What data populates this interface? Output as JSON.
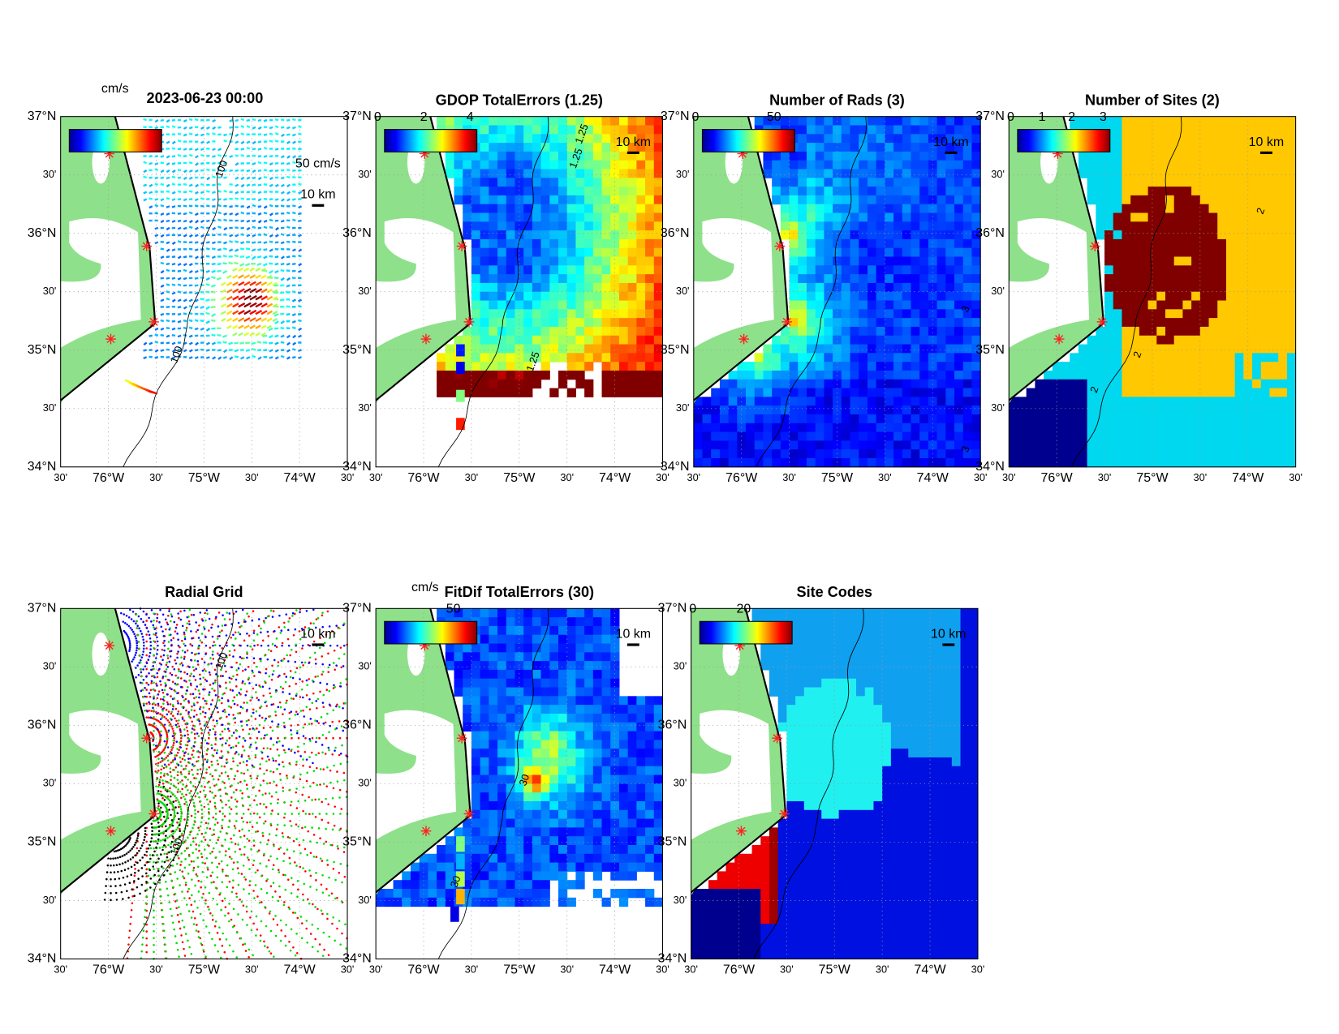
{
  "lat_labels": [
    "37°N",
    "30'",
    "36°N",
    "30'",
    "35°N",
    "30'",
    "34°N"
  ],
  "lon_labels": [
    "30'",
    "76°W",
    "30'",
    "75°W",
    "30'",
    "74°W",
    "30'"
  ],
  "panels": [
    {
      "title": "2023-06-23 00:00",
      "colorbar_label": "cm/s",
      "scale_label": "10 km",
      "vector_scale_label": "50 cm/s",
      "contour_labels": [
        "100",
        "100"
      ]
    },
    {
      "title": "GDOP TotalErrors (1.25)",
      "colorbar_ticks": [
        "0",
        "2",
        "4"
      ],
      "scale_label": "10 km",
      "contour_labels": [
        "1.25",
        "1.25",
        "1.25"
      ]
    },
    {
      "title": "Number of Rads (3)",
      "colorbar_ticks": [
        "0",
        "50"
      ],
      "scale_label": "10 km",
      "contour_labels": [
        "3",
        "3"
      ]
    },
    {
      "title": "Number of Sites (2)",
      "colorbar_ticks": [
        "0",
        "1",
        "2",
        "3"
      ],
      "scale_label": "10 km",
      "contour_labels": [
        "2",
        "2",
        "2"
      ]
    },
    {
      "title": "Radial Grid",
      "scale_label": "10 km",
      "contour_labels": [
        "100",
        "100"
      ]
    },
    {
      "title": "FitDif TotalErrors (30)",
      "colorbar_label": "cm/s",
      "colorbar_ticks": [
        "50"
      ],
      "scale_label": "10 km",
      "contour_labels": [
        "30",
        "30"
      ]
    },
    {
      "title": "Site Codes",
      "colorbar_ticks": [
        "0",
        "20"
      ],
      "scale_label": "10 km"
    }
  ]
}
